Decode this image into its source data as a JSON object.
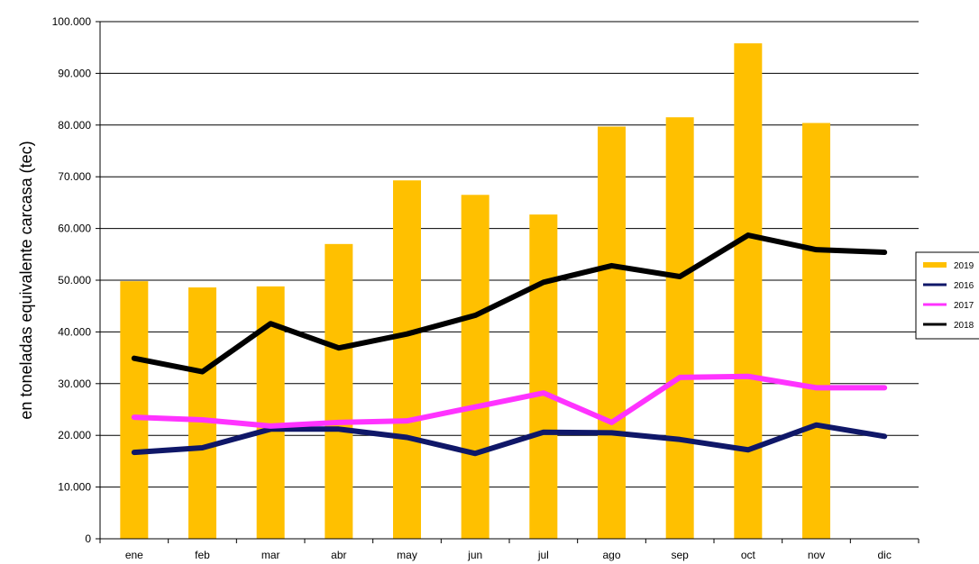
{
  "chart_data": {
    "type": "bar",
    "title": "",
    "xlabel": "",
    "ylabel": "en toneladas equivalente carcasa (tec)",
    "ylim": [
      0,
      100000
    ],
    "yticks": [
      0,
      10000,
      20000,
      30000,
      40000,
      50000,
      60000,
      70000,
      80000,
      90000,
      100000
    ],
    "ytick_labels": [
      "0",
      "10.000",
      "20.000",
      "30.000",
      "40.000",
      "50.000",
      "60.000",
      "70.000",
      "80.000",
      "90.000",
      "100.000"
    ],
    "grid": true,
    "legend_position": "right",
    "categories": [
      "ene",
      "feb",
      "mar",
      "abr",
      "may",
      "jun",
      "jul",
      "ago",
      "sep",
      "oct",
      "nov",
      "dic"
    ],
    "series": [
      {
        "name": "2019",
        "type": "bar",
        "color": "#ffc000",
        "values": [
          49800,
          48600,
          48800,
          57000,
          69300,
          66500,
          62700,
          79700,
          81500,
          95800,
          80400,
          null
        ]
      },
      {
        "name": "2016",
        "type": "line",
        "color": "#0f1768",
        "values": [
          16700,
          17600,
          21200,
          21200,
          19600,
          16500,
          20600,
          20500,
          19200,
          17200,
          22000,
          19800
        ]
      },
      {
        "name": "2017",
        "type": "line",
        "color": "#ff33ff",
        "values": [
          23500,
          23000,
          21800,
          22500,
          22800,
          25500,
          28200,
          22500,
          31200,
          31400,
          29200,
          29200
        ]
      },
      {
        "name": "2018",
        "type": "line",
        "color": "#000000",
        "values": [
          34900,
          32300,
          41600,
          36900,
          39600,
          43200,
          49600,
          52800,
          50700,
          58700,
          55900,
          55400
        ]
      }
    ]
  }
}
